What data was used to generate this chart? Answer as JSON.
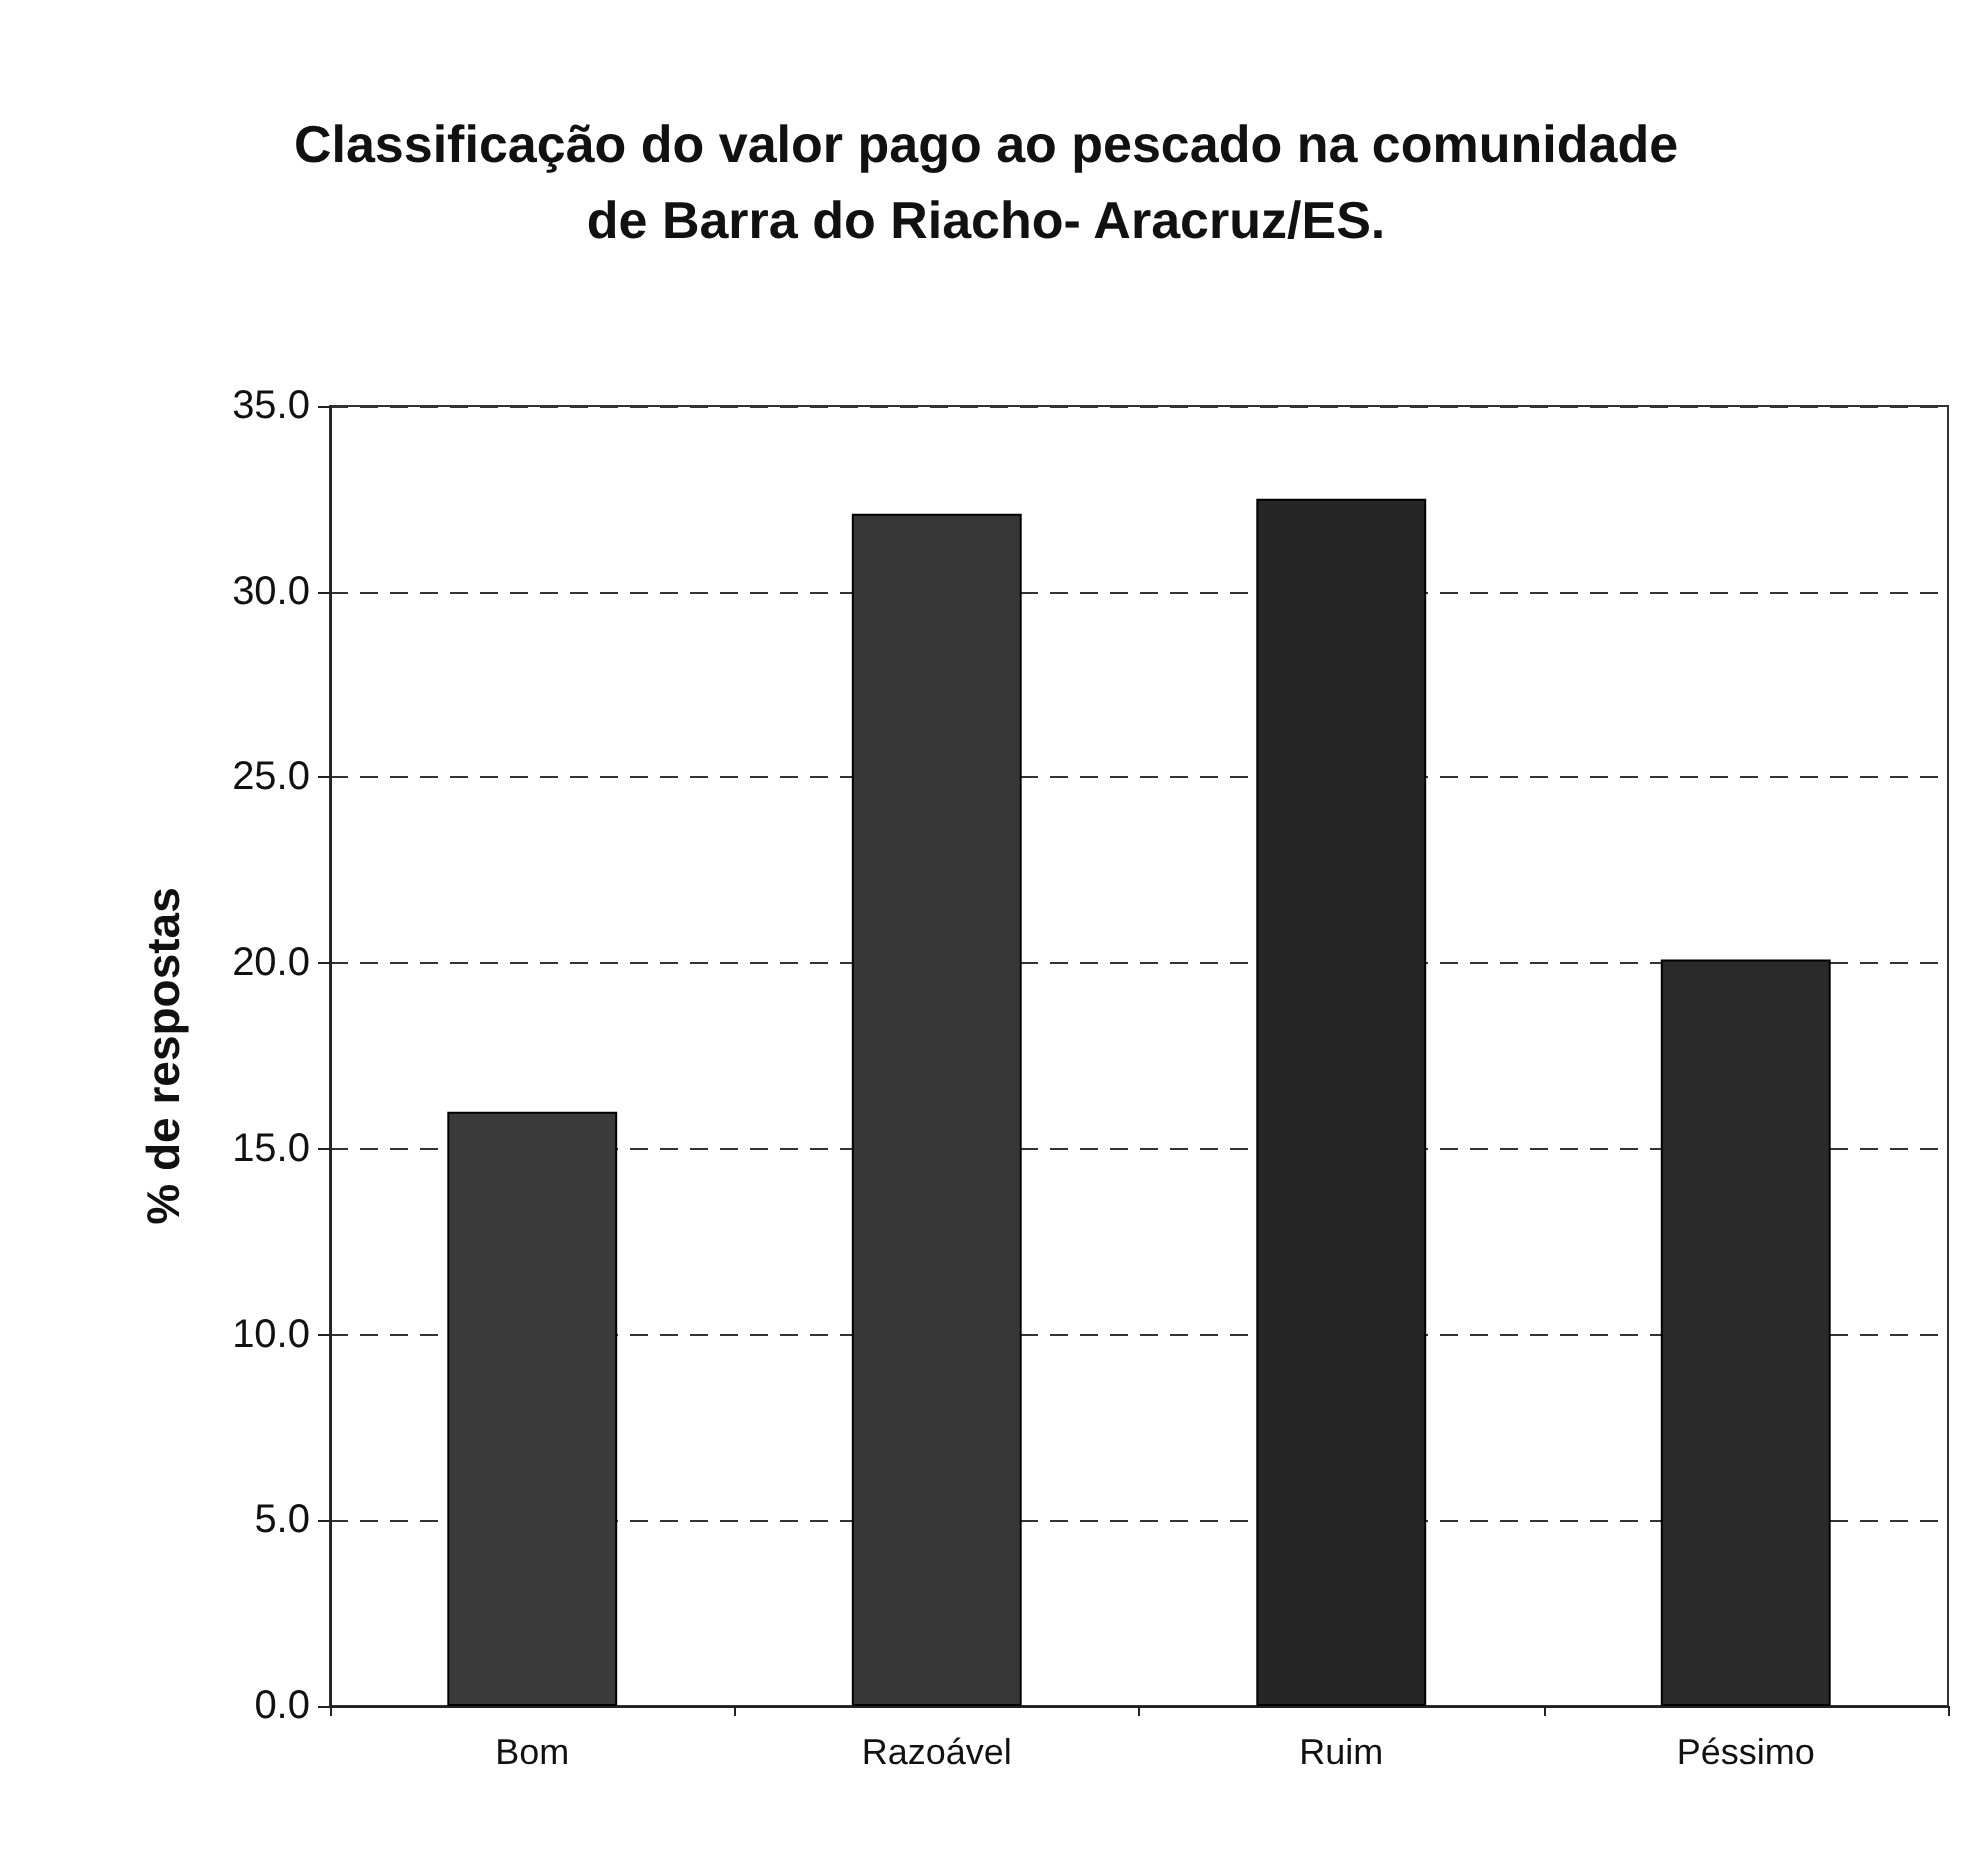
{
  "chart_data": {
    "type": "bar",
    "title": "Classificação do valor pago ao pescado na comunidade\nde Barra do Riacho- Aracruz/ES.",
    "ylabel": "% de respostas",
    "categories": [
      "Bom",
      "Razoável",
      "Ruim",
      "Péssimo"
    ],
    "values": [
      16.0,
      32.1,
      32.5,
      20.1
    ],
    "colors": [
      "#3a3a3a",
      "#363636",
      "#262626",
      "#2a2a2a"
    ],
    "ylim": [
      0,
      35
    ],
    "yticks": [
      {
        "value": 0,
        "label": "0.0"
      },
      {
        "value": 5,
        "label": "5.0"
      },
      {
        "value": 10,
        "label": "10.0"
      },
      {
        "value": 15,
        "label": "15.0"
      },
      {
        "value": 20,
        "label": "20.0"
      },
      {
        "value": 25,
        "label": "25.0"
      },
      {
        "value": 30,
        "label": "30.0"
      },
      {
        "value": 35,
        "label": "35.0"
      }
    ],
    "grid": "y"
  }
}
